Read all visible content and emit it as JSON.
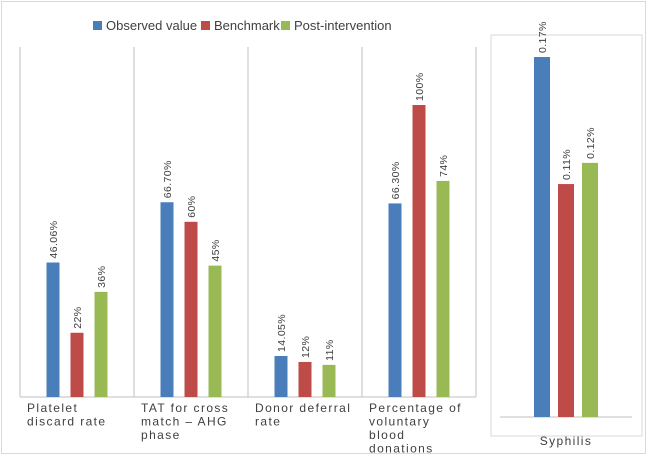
{
  "colors": {
    "observed": "#4a7ebb",
    "benchmark": "#be4b48",
    "post": "#98b954",
    "axis": "#bfbfbf",
    "panel_border": "#d9d9d9",
    "text": "#404040"
  },
  "chart_data": [
    {
      "type": "bar",
      "legend_position": "top",
      "series": [
        {
          "name": "Observed value",
          "values": [
            46.06,
            66.7,
            14.05,
            66.3
          ],
          "labels": [
            "46.06%",
            "66.70%",
            "14.05%",
            "66.30%"
          ]
        },
        {
          "name": "Benchmark",
          "values": [
            22,
            60,
            12,
            100
          ],
          "labels": [
            "22%",
            "60%",
            "12%",
            "100%"
          ]
        },
        {
          "name": "Post-intervention",
          "values": [
            36,
            45,
            11,
            74
          ],
          "labels": [
            "36%",
            "45%",
            "11%",
            "74%"
          ]
        }
      ],
      "categories": [
        [
          "Platelet",
          "discard rate"
        ],
        [
          "TAT for cross",
          "match – AHG",
          "phase"
        ],
        [
          "Donor deferral",
          "rate"
        ],
        [
          "Percentage of",
          "voluntary",
          "blood",
          "donations"
        ]
      ],
      "ylim": [
        0,
        100
      ],
      "grid": false
    },
    {
      "type": "bar",
      "series": [
        {
          "name": "Observed value",
          "values": [
            0.17
          ],
          "labels": [
            "0.17%"
          ]
        },
        {
          "name": "Benchmark",
          "values": [
            0.11
          ],
          "labels": [
            "0.11%"
          ]
        },
        {
          "name": "Post-intervention",
          "values": [
            0.12
          ],
          "labels": [
            "0.12%"
          ]
        }
      ],
      "categories": [
        [
          "Syphilis"
        ]
      ],
      "ylim": [
        0,
        0.17
      ],
      "grid": false
    }
  ]
}
